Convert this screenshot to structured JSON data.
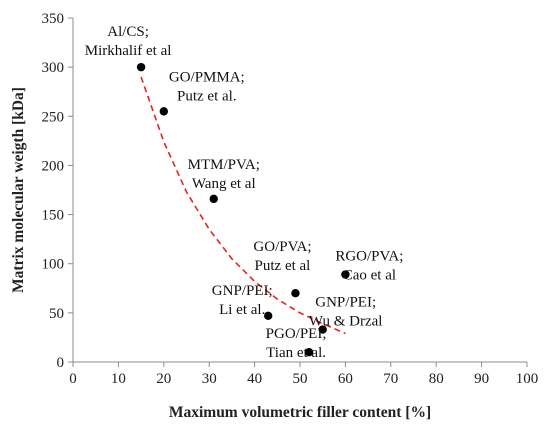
{
  "chart_data": {
    "type": "scatter",
    "xlabel": "Maximum volumetric filler content [%]",
    "ylabel": "Matrix molecular weigth [kDa]",
    "xlim": [
      0,
      100
    ],
    "ylim": [
      0,
      350
    ],
    "xticks": [
      "0",
      "10",
      "20",
      "30",
      "40",
      "50",
      "60",
      "70",
      "80",
      "90",
      "100"
    ],
    "yticks": [
      "0",
      "50",
      "100",
      "150",
      "200",
      "250",
      "300",
      "350"
    ],
    "grid": false,
    "legend": "none",
    "series": [
      {
        "type": "scatter",
        "color": "#000000",
        "points": [
          {
            "x": 15,
            "y": 300,
            "label_lines": [
              "Al/CS;",
              "Mirkhalif et al"
            ]
          },
          {
            "x": 20,
            "y": 255,
            "label_lines": [
              "GO/PMMA;",
              "Putz et al."
            ]
          },
          {
            "x": 31,
            "y": 166,
            "label_lines": [
              "MTM/PVA;",
              "Wang et al"
            ]
          },
          {
            "x": 49,
            "y": 70,
            "label_lines": [
              "GO/PVA;",
              "Putz et al"
            ]
          },
          {
            "x": 60,
            "y": 89,
            "label_lines": [
              "RGO/PVA;",
              "Cao et al"
            ]
          },
          {
            "x": 43,
            "y": 47,
            "label_lines": [
              "GNP/PEI;",
              "Li et al."
            ]
          },
          {
            "x": 55,
            "y": 33,
            "label_lines": [
              "GNP/PEI;",
              "Wu & Drzal"
            ]
          },
          {
            "x": 52,
            "y": 10,
            "label_lines": [
              "PGO/PEI;",
              "Tian et al."
            ]
          }
        ]
      },
      {
        "type": "line",
        "style": "dashed",
        "color": "#e8231f",
        "x": [
          15,
          20,
          25,
          30,
          35,
          40,
          45,
          50,
          55,
          60
        ],
        "y": [
          290,
          224,
          173,
          135,
          105,
          82,
          64,
          50,
          39,
          29
        ]
      }
    ]
  }
}
